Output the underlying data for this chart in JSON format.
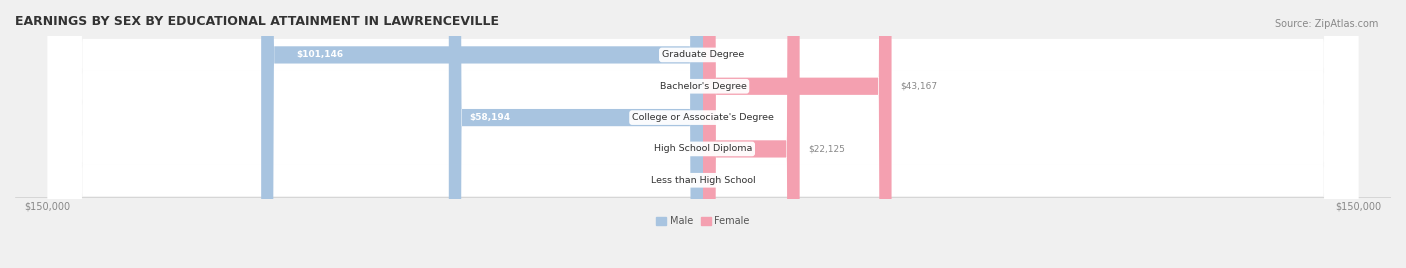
{
  "title": "EARNINGS BY SEX BY EDUCATIONAL ATTAINMENT IN LAWRENCEVILLE",
  "source": "Source: ZipAtlas.com",
  "categories": [
    "Less than High School",
    "High School Diploma",
    "College or Associate's Degree",
    "Bachelor's Degree",
    "Graduate Degree"
  ],
  "male_values": [
    0,
    0,
    58194,
    0,
    101146
  ],
  "female_values": [
    0,
    22125,
    0,
    43167,
    0
  ],
  "male_color": "#a8c4e0",
  "female_color": "#f4a0b0",
  "male_label_color": "#5a8fc0",
  "female_label_color": "#e06080",
  "label_color_inside": "#ffffff",
  "bg_color": "#f0f0f0",
  "row_bg_color": "#e8e8e8",
  "x_min": -150000,
  "x_max": 150000,
  "x_ticks": [
    -150000,
    150000
  ],
  "x_tick_labels": [
    "$150,000",
    "$150,000"
  ],
  "title_fontsize": 9,
  "source_fontsize": 7,
  "axis_fontsize": 7,
  "bar_height": 0.55
}
